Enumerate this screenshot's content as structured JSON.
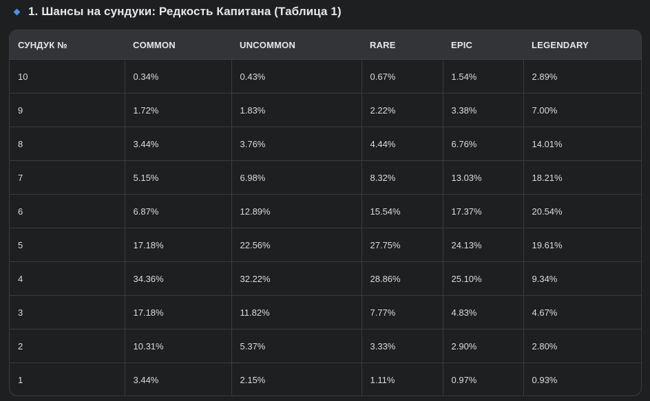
{
  "heading": {
    "title": "1. Шансы на сундуки: Редкость Капитана (Таблица 1)",
    "bullet_icon": "diamond-bullet-icon",
    "bullet_color": "#4f8fe6"
  },
  "table": {
    "columns": [
      "СУНДУК №",
      "COMMON",
      "UNCOMMON",
      "RARE",
      "EPIC",
      "LEGENDARY"
    ],
    "rows": [
      [
        "10",
        "0.34%",
        "0.43%",
        "0.67%",
        "1.54%",
        "2.89%"
      ],
      [
        "9",
        "1.72%",
        "1.83%",
        "2.22%",
        "3.38%",
        "7.00%"
      ],
      [
        "8",
        "3.44%",
        "3.76%",
        "4.44%",
        "6.76%",
        "14.01%"
      ],
      [
        "7",
        "5.15%",
        "6.98%",
        "8.32%",
        "13.03%",
        "18.21%"
      ],
      [
        "6",
        "6.87%",
        "12.89%",
        "15.54%",
        "17.37%",
        "20.54%"
      ],
      [
        "5",
        "17.18%",
        "22.56%",
        "27.75%",
        "24.13%",
        "19.61%"
      ],
      [
        "4",
        "34.36%",
        "32.22%",
        "28.86%",
        "25.10%",
        "9.34%"
      ],
      [
        "3",
        "17.18%",
        "11.82%",
        "7.77%",
        "4.83%",
        "4.67%"
      ],
      [
        "2",
        "10.31%",
        "5.37%",
        "3.33%",
        "2.90%",
        "2.80%"
      ],
      [
        "1",
        "3.44%",
        "2.15%",
        "1.11%",
        "0.97%",
        "0.93%"
      ]
    ]
  }
}
